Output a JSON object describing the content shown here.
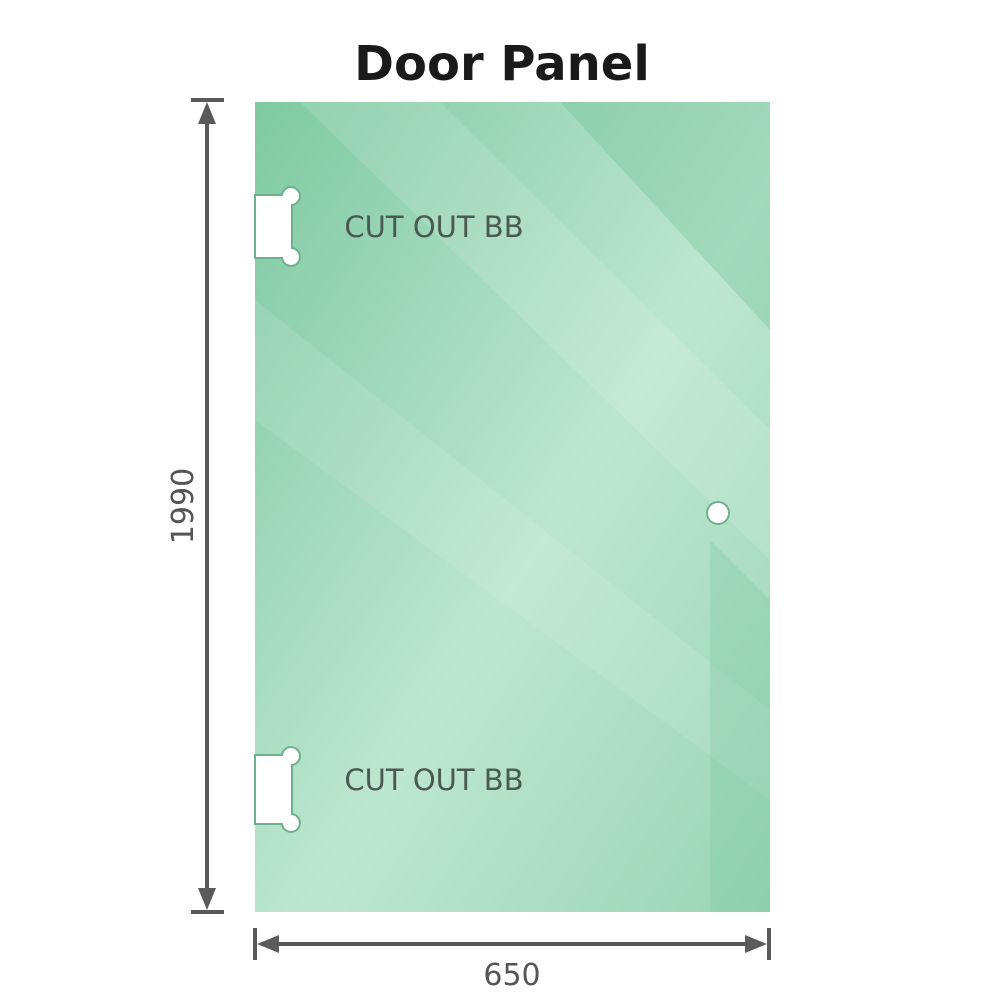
{
  "title": "Door Panel",
  "cutout_top_label": "CUT OUT BB",
  "cutout_bottom_label": "CUT OUT BB",
  "height_dimension": "1990",
  "width_dimension": "650",
  "colors": {
    "glass": "#8fd0ad",
    "glass_light": "#c2e8d4",
    "dimension_line": "#5a5a5a"
  }
}
